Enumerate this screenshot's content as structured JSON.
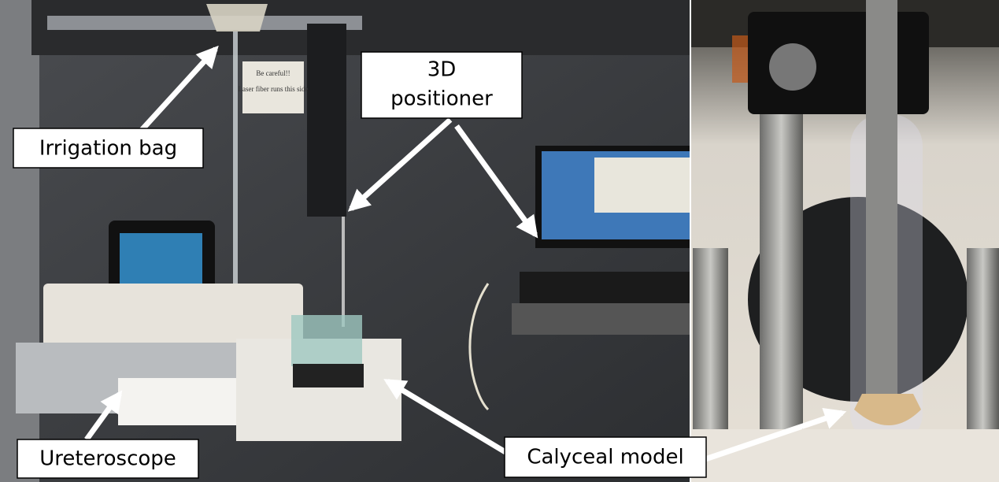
{
  "labels": {
    "irrigation_bag": "Irrigation bag",
    "positioner": [
      "3D",
      "positioner"
    ],
    "ureteroscope": "Ureteroscope",
    "calyceal_model": "Calyceal model"
  },
  "sign": [
    "Be careful!!",
    "Laser fiber runs this side"
  ]
}
